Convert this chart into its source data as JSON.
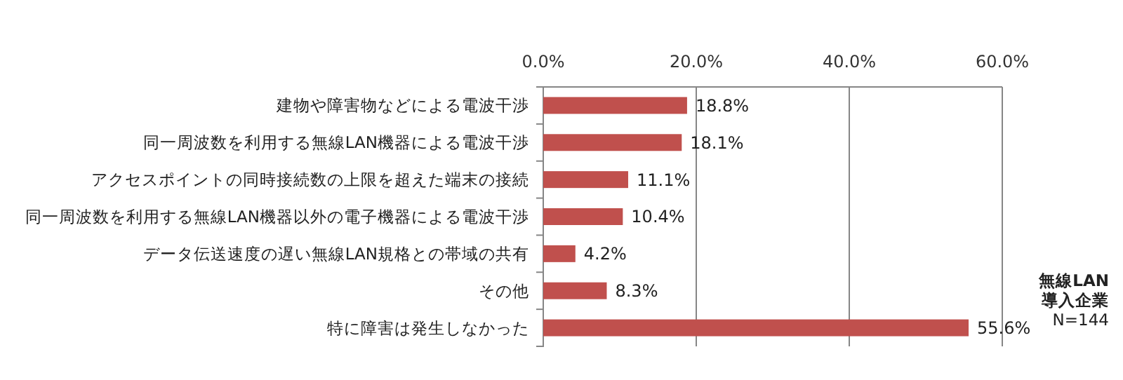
{
  "chart_data": {
    "type": "bar",
    "orientation": "horizontal",
    "categories": [
      "建物や障害物などによる電波干渉",
      "同一周波数を利用する無線LAN機器による電波干渉",
      "アクセスポイントの同時接続数の上限を超えた端末の接続",
      "同一周波数を利用する無線LAN機器以外の電子機器による電波干渉",
      "データ伝送速度の遅い無線LAN規格との帯域の共有",
      "その他",
      "特に障害は発生しなかった"
    ],
    "values": [
      18.8,
      18.1,
      11.1,
      10.4,
      4.2,
      8.3,
      55.6
    ],
    "color": "#c0504d",
    "value_labels": [
      "18.8%",
      "18.1%",
      "11.1%",
      "10.4%",
      "4.2%",
      "8.3%",
      "55.6%"
    ],
    "xlim": [
      0,
      60
    ],
    "xticks": [
      {
        "value": 0,
        "label": "0.0%"
      },
      {
        "value": 20,
        "label": "20.0%"
      },
      {
        "value": 40,
        "label": "40.0%"
      },
      {
        "value": 60,
        "label": "60.0%"
      }
    ],
    "grid": "x",
    "annotations": [
      "無線LAN導入企業",
      "N=144"
    ]
  }
}
